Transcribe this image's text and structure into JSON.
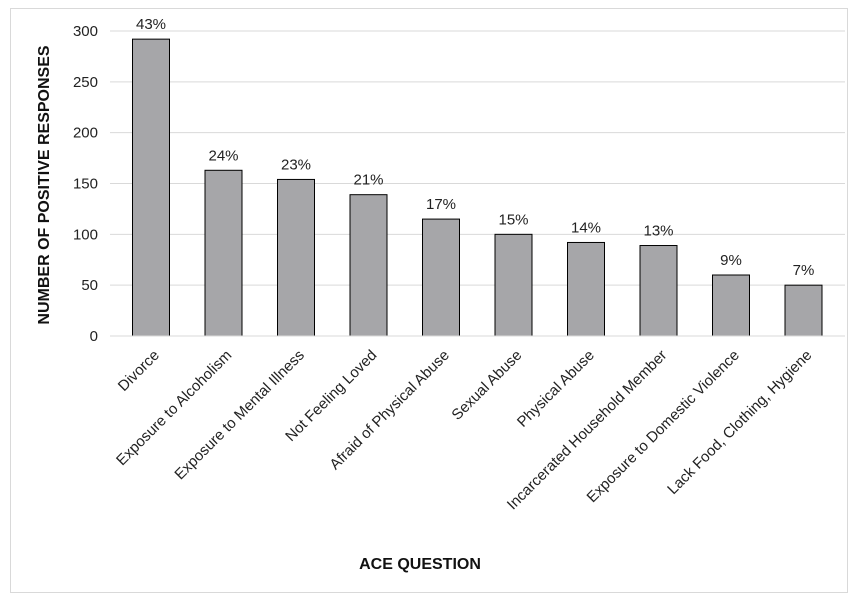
{
  "chart_data": {
    "type": "bar",
    "title": "",
    "xlabel": "ACE QUESTION",
    "ylabel": "NUMBER OF POSITIVE RESPONSES",
    "ylim": [
      0,
      300
    ],
    "yticks": [
      0,
      50,
      100,
      150,
      200,
      250,
      300
    ],
    "grid": true,
    "categories": [
      "Divorce",
      "Exposure to Alcoholism",
      "Exposure to Mental Illness",
      "Not Feeling Loved",
      "Afraid of Physical Abuse",
      "Sexual Abuse",
      "Physical Abuse",
      "Incarcerated Household Member",
      "Exposure to Domestic Violence",
      "Lack Food, Clothing, Hygiene"
    ],
    "values": [
      292,
      163,
      154,
      139,
      115,
      100,
      92,
      89,
      60,
      50
    ],
    "data_labels": [
      "43%",
      "24%",
      "23%",
      "21%",
      "17%",
      "15%",
      "14%",
      "13%",
      "9%",
      "7%"
    ],
    "colors": {
      "bar_fill": "#a6a6a9",
      "bar_stroke": "#000000",
      "grid": "#d9d9d9"
    }
  }
}
